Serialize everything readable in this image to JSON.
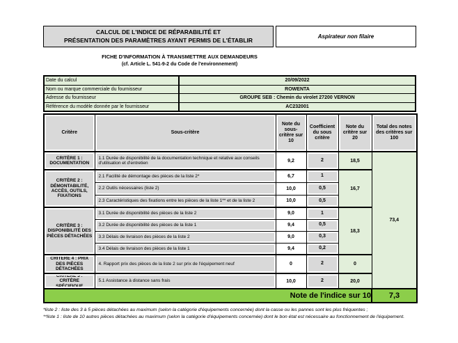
{
  "colors": {
    "header_gray": "#D9D9D9",
    "light_green": "#E2EFDA",
    "accent_green": "#8CCE4A"
  },
  "header": {
    "title_line1": "CALCUL DE L'INDICE DE RÉPARABILITÉ ET",
    "title_line2": "PRÉSENTATION DES PARAMÈTRES AYANT PERMIS DE L'ÉTABLIR",
    "product": "Aspirateur non filaire",
    "subtitle": "FICHE D'INFORMATION À TRANSMETTRE AUX DEMANDEURS",
    "subtitle_ref": "(cf. Article L. 541-9-2 du Code de l'environnement)"
  },
  "info": {
    "rows": [
      {
        "label": "Date du calcul",
        "value": "20/09/2022"
      },
      {
        "label": "Nom ou marque commerciale du fournisseur",
        "value": "ROWENTA"
      },
      {
        "label": "Adresse du fournisseur",
        "value": "GROUPE SEB : Chemin du virolet 27200 VERNON"
      },
      {
        "label": "Référence du modèle donnée par le fournisseur",
        "value": "AC232001"
      }
    ]
  },
  "table": {
    "headers": {
      "critere": "Critère",
      "sous_critere": "Sous-critère",
      "note10": "Note du sous-critère sur 10",
      "coefficient": "Coefficient du sous critère",
      "note20": "Note du critère sur 20",
      "total": "Total des notes des critères sur 100"
    },
    "groups": [
      {
        "critere": "CRITÈRE 1 : DOCUMENTATION",
        "note20": "18,5",
        "rows": [
          {
            "label": "1.1 Durée de disponibilité de la documentation technique et relative aux conseils d'utilisation et d'entretien",
            "note10": "9,2",
            "coeff": "2"
          }
        ]
      },
      {
        "critere": "CRITÈRE 2 : DÉMONTABILITÉ, ACCÈS, OUTILS, FIXATIONS",
        "note20": "16,7",
        "rows": [
          {
            "label": "2.1 Facilité de démontage des pièces de la liste 2*",
            "note10": "6,7",
            "coeff": "1"
          },
          {
            "label": "2.2 Outils nécessaires (liste 2)",
            "note10": "10,0",
            "coeff": "0,5"
          },
          {
            "label": "2.3 Caractéristiques des fixations entre les pièces de la liste 1** et de la liste 2",
            "note10": "10,0",
            "coeff": "0,5"
          }
        ]
      },
      {
        "critere": "CRITÈRE 3 : DISPONIBILITÉ DES PIÈCES DÉTACHÉES",
        "note20": "18,3",
        "rows": [
          {
            "label": "3.1 Durée de disponibilité des pièces de la liste 2",
            "note10": "9,0",
            "coeff": "1"
          },
          {
            "label": "3.2 Durée de disponibilité des pièces de la liste 1",
            "note10": "9,4",
            "coeff": "0,5"
          },
          {
            "label": "3.3 Délais de livraison des pièces de la liste 2",
            "note10": "9,0",
            "coeff": "0,3"
          },
          {
            "label": "3.4 Délais de livraison des pièces de la liste 1",
            "note10": "9,4",
            "coeff": "0,2"
          }
        ]
      },
      {
        "critere": "CRITÈRE 4 : PRIX DES PIÈCES DÉTACHÉES",
        "note20": "0",
        "rows": [
          {
            "label": "4. Rapport prix des pièces de la liste 2 sur prix de l'équipement neuf",
            "note10": "0",
            "coeff": "2"
          }
        ]
      },
      {
        "critere": "CRITÈRE 5 : CRITÈRE SPÉCIFIQUE",
        "note20": "20,0",
        "rows": [
          {
            "label": "5.1 Assistance à distance sans frais",
            "note10": "10,0",
            "coeff": "2"
          }
        ]
      }
    ],
    "total": "73,4"
  },
  "score": {
    "label": "Note de l'indice sur 10",
    "value": "7,3"
  },
  "footnotes": [
    "*liste 2 : liste des 3 à 5 pièces détachées au maximum (selon la catégorie d'équipements concernée) dont la casse ou les pannes sont les plus fréquentes ;",
    "**liste 1 : liste de 10 autres pièces détachées au maximum (selon la catégorie d'équipements concernée) dont le bon état est nécessaire au fonctionnement de l'équipement."
  ]
}
